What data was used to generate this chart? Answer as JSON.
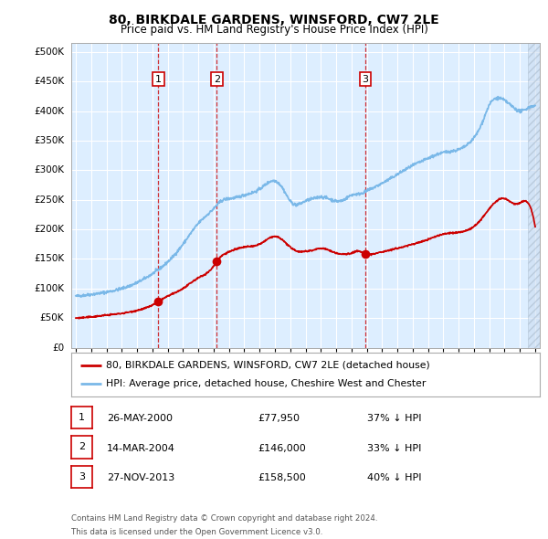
{
  "title": "80, BIRKDALE GARDENS, WINSFORD, CW7 2LE",
  "subtitle": "Price paid vs. HM Land Registry's House Price Index (HPI)",
  "ylabel_ticks": [
    "£0",
    "£50K",
    "£100K",
    "£150K",
    "£200K",
    "£250K",
    "£300K",
    "£350K",
    "£400K",
    "£450K",
    "£500K"
  ],
  "ytick_values": [
    0,
    50000,
    100000,
    150000,
    200000,
    250000,
    300000,
    350000,
    400000,
    450000,
    500000
  ],
  "ylim": [
    0,
    515000
  ],
  "xlim_start": 1994.7,
  "xlim_end": 2025.3,
  "background_color": "#ffffff",
  "plot_bg_color": "#ddeeff",
  "grid_color": "#ffffff",
  "hpi_line_color": "#7ab8e8",
  "price_line_color": "#cc0000",
  "vline_color": "#cc0000",
  "sale_marker_color": "#cc0000",
  "legend_label_red": "80, BIRKDALE GARDENS, WINSFORD, CW7 2LE (detached house)",
  "legend_label_blue": "HPI: Average price, detached house, Cheshire West and Chester",
  "footer_line1": "Contains HM Land Registry data © Crown copyright and database right 2024.",
  "footer_line2": "This data is licensed under the Open Government Licence v3.0.",
  "sales": [
    {
      "num": 1,
      "date_num": 2000.38,
      "price": 77950,
      "label": "1",
      "date_str": "26-MAY-2000",
      "price_str": "£77,950",
      "hpi_str": "37% ↓ HPI"
    },
    {
      "num": 2,
      "date_num": 2004.2,
      "price": 146000,
      "label": "2",
      "date_str": "14-MAR-2004",
      "price_str": "£146,000",
      "hpi_str": "33% ↓ HPI"
    },
    {
      "num": 3,
      "date_num": 2013.9,
      "price": 158500,
      "label": "3",
      "date_str": "27-NOV-2013",
      "price_str": "£158,500",
      "hpi_str": "40% ↓ HPI"
    }
  ],
  "hpi_keypoints": [
    [
      1995.0,
      87000
    ],
    [
      1996.0,
      90000
    ],
    [
      1997.0,
      94000
    ],
    [
      1998.0,
      100000
    ],
    [
      1999.0,
      110000
    ],
    [
      2000.0,
      125000
    ],
    [
      2001.0,
      145000
    ],
    [
      2002.0,
      175000
    ],
    [
      2003.0,
      210000
    ],
    [
      2004.0,
      235000
    ],
    [
      2004.5,
      248000
    ],
    [
      2005.0,
      252000
    ],
    [
      2005.5,
      254000
    ],
    [
      2006.0,
      258000
    ],
    [
      2007.0,
      268000
    ],
    [
      2007.5,
      278000
    ],
    [
      2008.0,
      282000
    ],
    [
      2008.5,
      270000
    ],
    [
      2009.0,
      248000
    ],
    [
      2009.5,
      242000
    ],
    [
      2010.0,
      248000
    ],
    [
      2010.5,
      252000
    ],
    [
      2011.0,
      255000
    ],
    [
      2011.5,
      252000
    ],
    [
      2012.0,
      248000
    ],
    [
      2012.5,
      250000
    ],
    [
      2013.0,
      258000
    ],
    [
      2013.5,
      260000
    ],
    [
      2014.0,
      265000
    ],
    [
      2015.0,
      278000
    ],
    [
      2016.0,
      293000
    ],
    [
      2017.0,
      308000
    ],
    [
      2018.0,
      320000
    ],
    [
      2019.0,
      330000
    ],
    [
      2020.0,
      335000
    ],
    [
      2021.0,
      355000
    ],
    [
      2021.5,
      378000
    ],
    [
      2022.0,
      410000
    ],
    [
      2022.5,
      422000
    ],
    [
      2023.0,
      418000
    ],
    [
      2023.5,
      408000
    ],
    [
      2024.0,
      400000
    ],
    [
      2024.5,
      405000
    ],
    [
      2025.0,
      408000
    ]
  ],
  "price_keypoints": [
    [
      1995.0,
      50000
    ],
    [
      1996.0,
      52000
    ],
    [
      1997.0,
      55000
    ],
    [
      1998.0,
      58000
    ],
    [
      1999.0,
      63000
    ],
    [
      2000.0,
      72000
    ],
    [
      2000.38,
      77950
    ],
    [
      2001.0,
      87000
    ],
    [
      2002.0,
      100000
    ],
    [
      2003.0,
      118000
    ],
    [
      2004.0,
      138000
    ],
    [
      2004.2,
      146000
    ],
    [
      2005.0,
      162000
    ],
    [
      2006.0,
      170000
    ],
    [
      2007.0,
      175000
    ],
    [
      2007.5,
      183000
    ],
    [
      2008.0,
      188000
    ],
    [
      2008.5,
      182000
    ],
    [
      2009.0,
      170000
    ],
    [
      2009.5,
      163000
    ],
    [
      2010.0,
      163000
    ],
    [
      2010.5,
      165000
    ],
    [
      2011.0,
      168000
    ],
    [
      2011.5,
      165000
    ],
    [
      2012.0,
      160000
    ],
    [
      2012.5,
      158000
    ],
    [
      2013.0,
      160000
    ],
    [
      2013.5,
      163000
    ],
    [
      2013.9,
      158500
    ],
    [
      2014.0,
      158000
    ],
    [
      2015.0,
      162000
    ],
    [
      2016.0,
      168000
    ],
    [
      2017.0,
      175000
    ],
    [
      2018.0,
      183000
    ],
    [
      2019.0,
      192000
    ],
    [
      2020.0,
      195000
    ],
    [
      2021.0,
      205000
    ],
    [
      2021.5,
      218000
    ],
    [
      2022.0,
      235000
    ],
    [
      2022.5,
      248000
    ],
    [
      2023.0,
      252000
    ],
    [
      2023.3,
      248000
    ],
    [
      2023.8,
      243000
    ],
    [
      2024.0,
      245000
    ],
    [
      2024.3,
      248000
    ]
  ]
}
